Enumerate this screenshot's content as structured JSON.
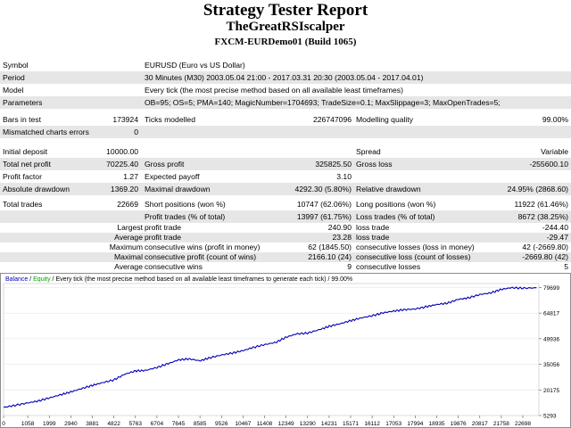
{
  "report": {
    "title": "Strategy Tester Report",
    "ea_name": "TheGreatRSIscalper",
    "server": "FXCM-EURDemo01 (Build 1065)"
  },
  "info": {
    "symbol_label": "Symbol",
    "symbol_value": "EURUSD (Euro vs US Dollar)",
    "period_label": "Period",
    "period_value": "30 Minutes (M30) 2003.05.04 21:00 - 2017.03.31 20:30 (2003.05.04 - 2017.04.01)",
    "model_label": "Model",
    "model_value": "Every tick (the most precise method based on all available least timeframes)",
    "params_label": "Parameters",
    "params_value": "OB=95; OS=5; PMA=140; MagicNumber=1704693; TradeSize=0.1; MaxSlippage=3; MaxOpenTrades=5;"
  },
  "stats": {
    "bars_label": "Bars in test",
    "bars_value": "173924",
    "ticks_label": "Ticks modelled",
    "ticks_value": "226747096",
    "quality_label": "Modelling quality",
    "quality_value": "99.00%",
    "mismatch_label": "Mismatched charts errors",
    "mismatch_value": "0",
    "deposit_label": "Initial deposit",
    "deposit_value": "10000.00",
    "spread_label": "Spread",
    "spread_value": "Variable",
    "netprofit_label": "Total net profit",
    "netprofit_value": "70225.40",
    "grossprofit_label": "Gross profit",
    "grossprofit_value": "325825.50",
    "grossloss_label": "Gross loss",
    "grossloss_value": "-255600.10",
    "pf_label": "Profit factor",
    "pf_value": "1.27",
    "payoff_label": "Expected payoff",
    "payoff_value": "3.10",
    "absdd_label": "Absolute drawdown",
    "absdd_value": "1369.20",
    "maxdd_label": "Maximal drawdown",
    "maxdd_value": "4292.30 (5.80%)",
    "reldd_label": "Relative drawdown",
    "reldd_value": "24.95% (2868.60)",
    "trades_label": "Total trades",
    "trades_value": "22669",
    "short_label": "Short positions (won %)",
    "short_value": "10747 (62.06%)",
    "long_label": "Long positions (won %)",
    "long_value": "11922 (61.46%)",
    "ptrades_label": "Profit trades (% of total)",
    "ptrades_value": "13997 (61.75%)",
    "ltrades_label": "Loss trades (% of total)",
    "ltrades_value": "8672 (38.25%)",
    "largest_label": "Largest",
    "largest_profit_label": "profit trade",
    "largest_profit_value": "240.90",
    "largest_loss_label": "loss trade",
    "largest_loss_value": "-244.40",
    "average_label": "Average",
    "average_profit_label": "profit trade",
    "average_profit_value": "23.28",
    "average_loss_label": "loss trade",
    "average_loss_value": "-29.47",
    "maximum_label": "Maximum",
    "maxconswins_label": "consecutive wins (profit in money)",
    "maxconswins_value": "62 (1845.50)",
    "maxconsloss_label": "consecutive losses (loss in money)",
    "maxconsloss_value": "42 (-2669.80)",
    "maximal_label": "Maximal",
    "maxconsprofit_label": "consecutive profit (count of wins)",
    "maxconsprofit_value": "2166.10 (24)",
    "maxconslosscount_label": "consecutive loss (count of losses)",
    "maxconslosscount_value": "-2669.80 (42)",
    "avgcons_label": "Average",
    "avgconswins_label": "consecutive wins",
    "avgconswins_value": "9",
    "avgconsloss_label": "consecutive losses",
    "avgconsloss_value": "5"
  },
  "chart_data": {
    "type": "line",
    "legend": {
      "balance": "Balance",
      "equity": "Equity",
      "sep": " / ",
      "note": " / Every tick (the most precise method based on all available least timeframes to generate each tick) / 99.00%"
    },
    "colors": {
      "balance": "#0000b8",
      "equity": "#00a000",
      "frame": "#8c8c8c"
    },
    "yticks": [
      5293,
      20175,
      35056,
      49936,
      64817,
      79699
    ],
    "xticks": [
      0,
      1058,
      1999,
      2940,
      3881,
      4822,
      5763,
      6704,
      7645,
      8585,
      9526,
      10467,
      11408,
      12349,
      13290,
      14231,
      15171,
      16112,
      17053,
      17994,
      18935,
      19876,
      20817,
      21758,
      22698
    ],
    "ylim": [
      5293,
      82000
    ],
    "xlim": [
      0,
      23400
    ],
    "series": [
      {
        "name": "Balance",
        "x": [
          0,
          500,
          1058,
          1500,
          1999,
          2500,
          2940,
          3400,
          3881,
          4300,
          4822,
          5300,
          5763,
          6200,
          6704,
          7200,
          7645,
          8100,
          8585,
          9000,
          9526,
          10000,
          10467,
          10900,
          11408,
          11900,
          12349,
          12800,
          13290,
          13800,
          14231,
          14700,
          15171,
          15600,
          16112,
          16600,
          17053,
          17500,
          17994,
          18500,
          18935,
          19400,
          19876,
          20300,
          20817,
          21300,
          21758,
          22200,
          22698,
          23300
        ],
        "y": [
          10000,
          11200,
          12600,
          13700,
          15500,
          17400,
          19000,
          20900,
          22800,
          24300,
          26000,
          29300,
          31200,
          31500,
          33200,
          35500,
          37600,
          38200,
          37100,
          38800,
          40500,
          41600,
          43000,
          44800,
          46500,
          47800,
          50800,
          52700,
          53200,
          55200,
          57100,
          58600,
          60400,
          61900,
          63300,
          65000,
          66000,
          66800,
          67200,
          68600,
          69800,
          70600,
          72800,
          73600,
          75600,
          76600,
          78600,
          79600,
          79300,
          79500
        ]
      }
    ]
  }
}
